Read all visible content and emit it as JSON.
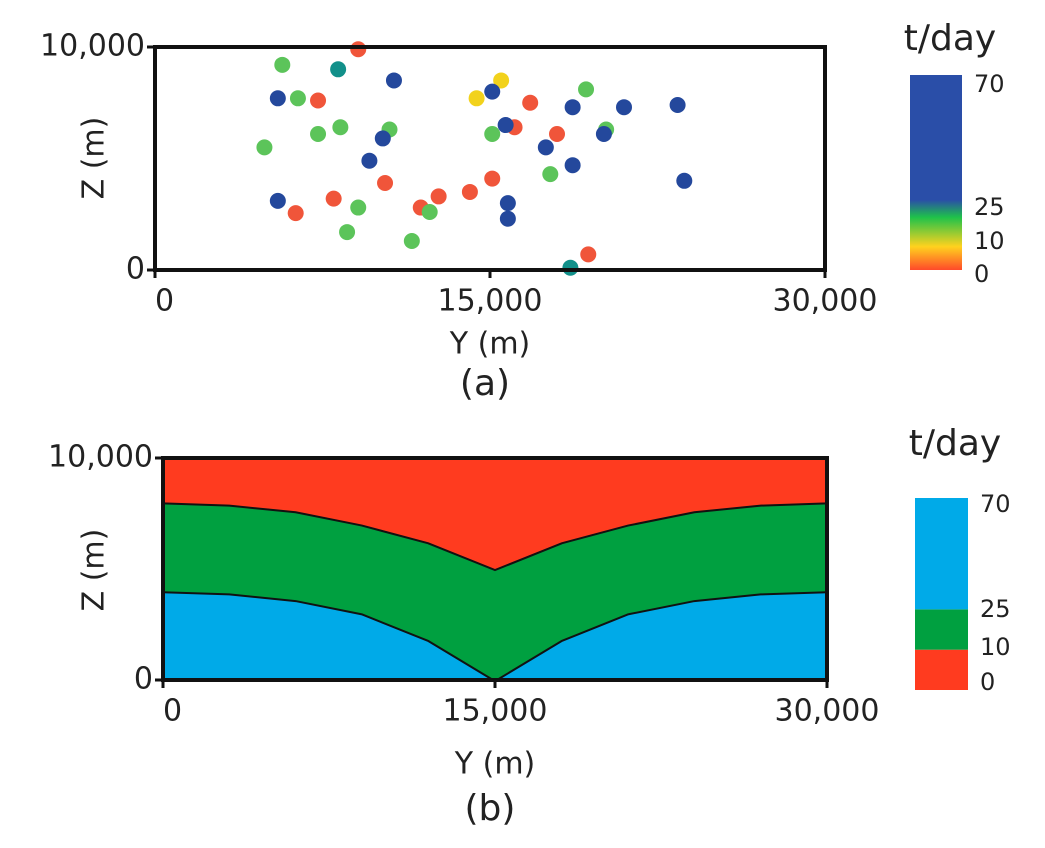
{
  "chart_data": [
    {
      "type": "scatter",
      "label": "(a)",
      "xlabel": "Y (m)",
      "ylabel": "Z (m)",
      "xlim": [
        0,
        30000
      ],
      "ylim": [
        0,
        10000
      ],
      "xticks": [
        0,
        {
          "value": 15000,
          "label": "15,000"
        },
        {
          "value": 30000,
          "label": "30,000"
        }
      ],
      "yticks": [
        0,
        {
          "value": 10000,
          "label": "10,000"
        }
      ],
      "series": [
        {
          "color": "#f0553a",
          "x": [
            9100,
            7300,
            6300,
            8000,
            10300,
            11900,
            12700,
            14100,
            15100,
            16100,
            16800,
            18000,
            19400
          ],
          "values": [
            9900,
            7600,
            2550,
            3200,
            3900,
            2800,
            3300,
            3500,
            4100,
            6400,
            7500,
            6100,
            700
          ]
        },
        {
          "color": "#f2d21c",
          "x": [
            15500,
            14400
          ],
          "values": [
            8500,
            7700
          ]
        },
        {
          "color": "#5cc45a",
          "x": [
            5700,
            6400,
            8300,
            7300,
            4900,
            10500,
            9100,
            8600,
            11500,
            12300,
            15100,
            17700,
            19300,
            20200
          ],
          "values": [
            9200,
            7700,
            6400,
            6100,
            5500,
            6300,
            2800,
            1700,
            1300,
            2600,
            6100,
            4300,
            8100,
            6300
          ]
        },
        {
          "color": "#12908a",
          "x": [
            8200,
            18600
          ],
          "values": [
            9000,
            100
          ]
        },
        {
          "color": "#24489c",
          "x": [
            5500,
            5500,
            10700,
            9600,
            10200,
            15100,
            15700,
            15800,
            15800,
            17500,
            18700,
            18700,
            20100,
            21000,
            23400,
            23700
          ],
          "values": [
            7700,
            3100,
            8500,
            4900,
            5900,
            8000,
            6500,
            3000,
            2300,
            5500,
            7300,
            4700,
            6100,
            7300,
            7400,
            4000
          ]
        }
      ],
      "colorbar": {
        "title": "t/day",
        "ticks": [
          0,
          10,
          25,
          70
        ],
        "colors": [
          "#ff4a2a",
          "#ffd21e",
          "#1fc24a",
          "#2a4ea8"
        ]
      }
    },
    {
      "type": "area",
      "label": "(b)",
      "xlabel": "Y (m)",
      "ylabel": "Z (m)",
      "xlim": [
        0,
        30000
      ],
      "ylim": [
        0,
        10000
      ],
      "xticks": [
        0,
        {
          "value": 15000,
          "label": "15,000"
        },
        {
          "value": 30000,
          "label": "30,000"
        }
      ],
      "yticks": [
        0,
        {
          "value": 10000,
          "label": "10,000"
        }
      ],
      "x": [
        0,
        3000,
        6000,
        9000,
        12000,
        15000,
        18000,
        21000,
        24000,
        27000,
        30000
      ],
      "stacked": true,
      "series": [
        {
          "color": "#00aae8",
          "values": [
            4000,
            3900,
            3600,
            3000,
            1800,
            0,
            1800,
            3000,
            3600,
            3900,
            4000
          ]
        },
        {
          "color": "#00a040",
          "values": [
            4000,
            4000,
            4000,
            4000,
            4400,
            5000,
            4400,
            4000,
            4000,
            4000,
            4000
          ]
        },
        {
          "color": "#ff3b1f",
          "values": [
            2000,
            2100,
            2400,
            3000,
            3800,
            5000,
            3800,
            3000,
            2400,
            2100,
            2000
          ]
        }
      ],
      "colorbar": {
        "title": "t/day",
        "ticks": [
          0,
          10,
          25,
          70
        ],
        "colors": [
          "#ff3b1f",
          "#00a040",
          "#00aae8"
        ]
      }
    }
  ]
}
